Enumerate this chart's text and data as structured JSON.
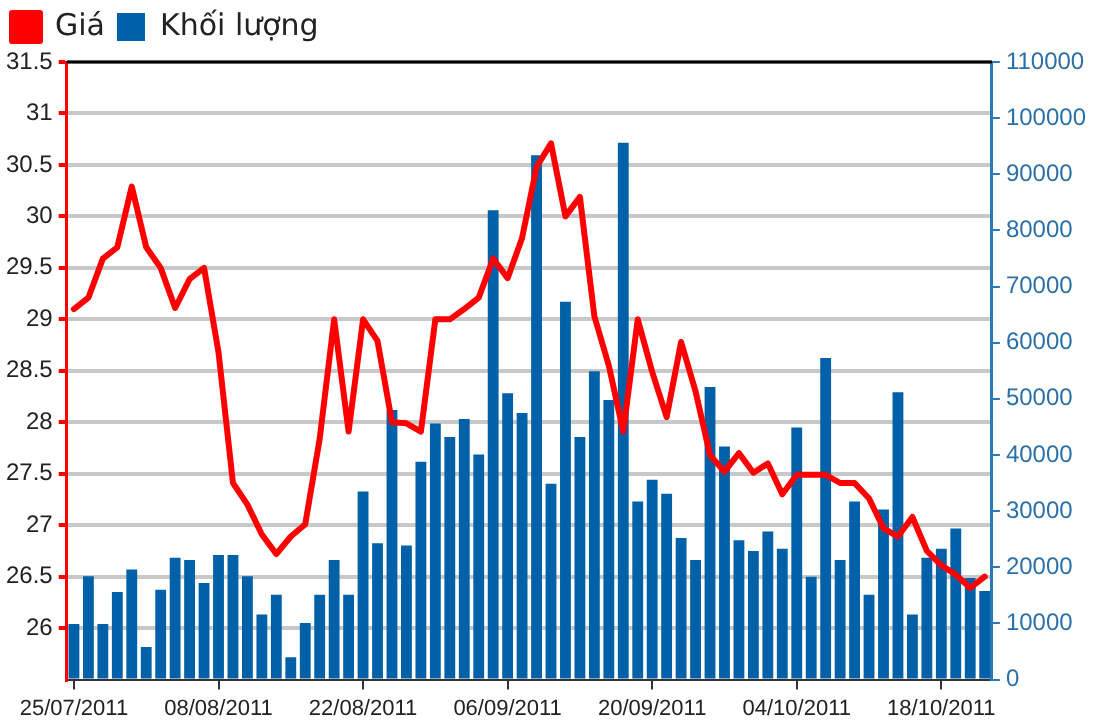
{
  "chart_data": {
    "type": "bar",
    "categories": [
      "25/07/2011",
      null,
      null,
      null,
      null,
      null,
      null,
      null,
      null,
      null,
      "08/08/2011",
      null,
      null,
      null,
      null,
      null,
      null,
      null,
      null,
      null,
      "22/08/2011",
      null,
      null,
      null,
      null,
      null,
      null,
      null,
      null,
      null,
      "06/09/2011",
      null,
      null,
      null,
      null,
      null,
      null,
      null,
      null,
      null,
      "20/09/2011",
      null,
      null,
      null,
      null,
      null,
      null,
      null,
      null,
      null,
      "04/10/2011",
      null,
      null,
      null,
      null,
      null,
      null,
      null,
      null,
      null,
      "18/10/2011",
      null,
      null,
      null
    ],
    "series": [
      {
        "name": "Giá",
        "type": "line",
        "color": "#ff0000",
        "values": [
          29.1,
          29.21,
          29.59,
          29.7,
          30.29,
          29.7,
          29.5,
          29.11,
          29.39,
          29.5,
          28.68,
          27.41,
          27.2,
          26.91,
          26.72,
          26.89,
          27.01,
          27.84,
          29.0,
          27.91,
          29.0,
          28.79,
          28.0,
          27.99,
          27.91,
          29.0,
          29.0,
          29.1,
          29.21,
          29.59,
          29.4,
          29.79,
          30.48,
          30.71,
          30.0,
          30.19,
          29.03,
          28.55,
          27.91,
          29.0,
          28.49,
          28.05,
          28.78,
          28.3,
          27.68,
          27.52,
          27.7,
          27.51,
          27.6,
          27.3,
          27.49,
          27.49,
          27.49,
          27.41,
          27.41,
          27.26,
          26.97,
          26.89,
          27.08,
          26.75,
          26.61,
          26.52,
          26.39,
          26.5
        ]
      },
      {
        "name": "Khối lượng",
        "axis": "y2",
        "color": "#0060a8",
        "values": [
          9900,
          18400,
          9900,
          15600,
          19600,
          5800,
          16000,
          21700,
          21300,
          17200,
          22200,
          22200,
          18400,
          11600,
          15100,
          4000,
          10100,
          15100,
          21300,
          15100,
          33500,
          24300,
          48000,
          23900,
          38800,
          45600,
          43200,
          46400,
          40100,
          83600,
          51000,
          47500,
          93400,
          34900,
          67300,
          43200,
          54900,
          49800,
          95600,
          31700,
          35600,
          33100,
          25200,
          21300,
          52100,
          41500,
          24800,
          22900,
          26400,
          23300,
          44900,
          18300,
          57300,
          21300,
          31700,
          15100,
          30300,
          51200,
          11600,
          21700,
          23300,
          26900,
          18100,
          15800
        ]
      }
    ],
    "ylim": [
      25.5,
      31.5
    ],
    "yticks": [
      26,
      26.5,
      27,
      27.5,
      28,
      28.5,
      29,
      29.5,
      30,
      30.5,
      31,
      31.5
    ],
    "y2lim": [
      0,
      110000
    ],
    "y2ticks": [
      0,
      10000,
      20000,
      30000,
      40000,
      50000,
      60000,
      70000,
      80000,
      90000,
      100000,
      110000
    ],
    "grid": "y",
    "legend": "top left",
    "marker": "none",
    "line_style": "solid"
  }
}
